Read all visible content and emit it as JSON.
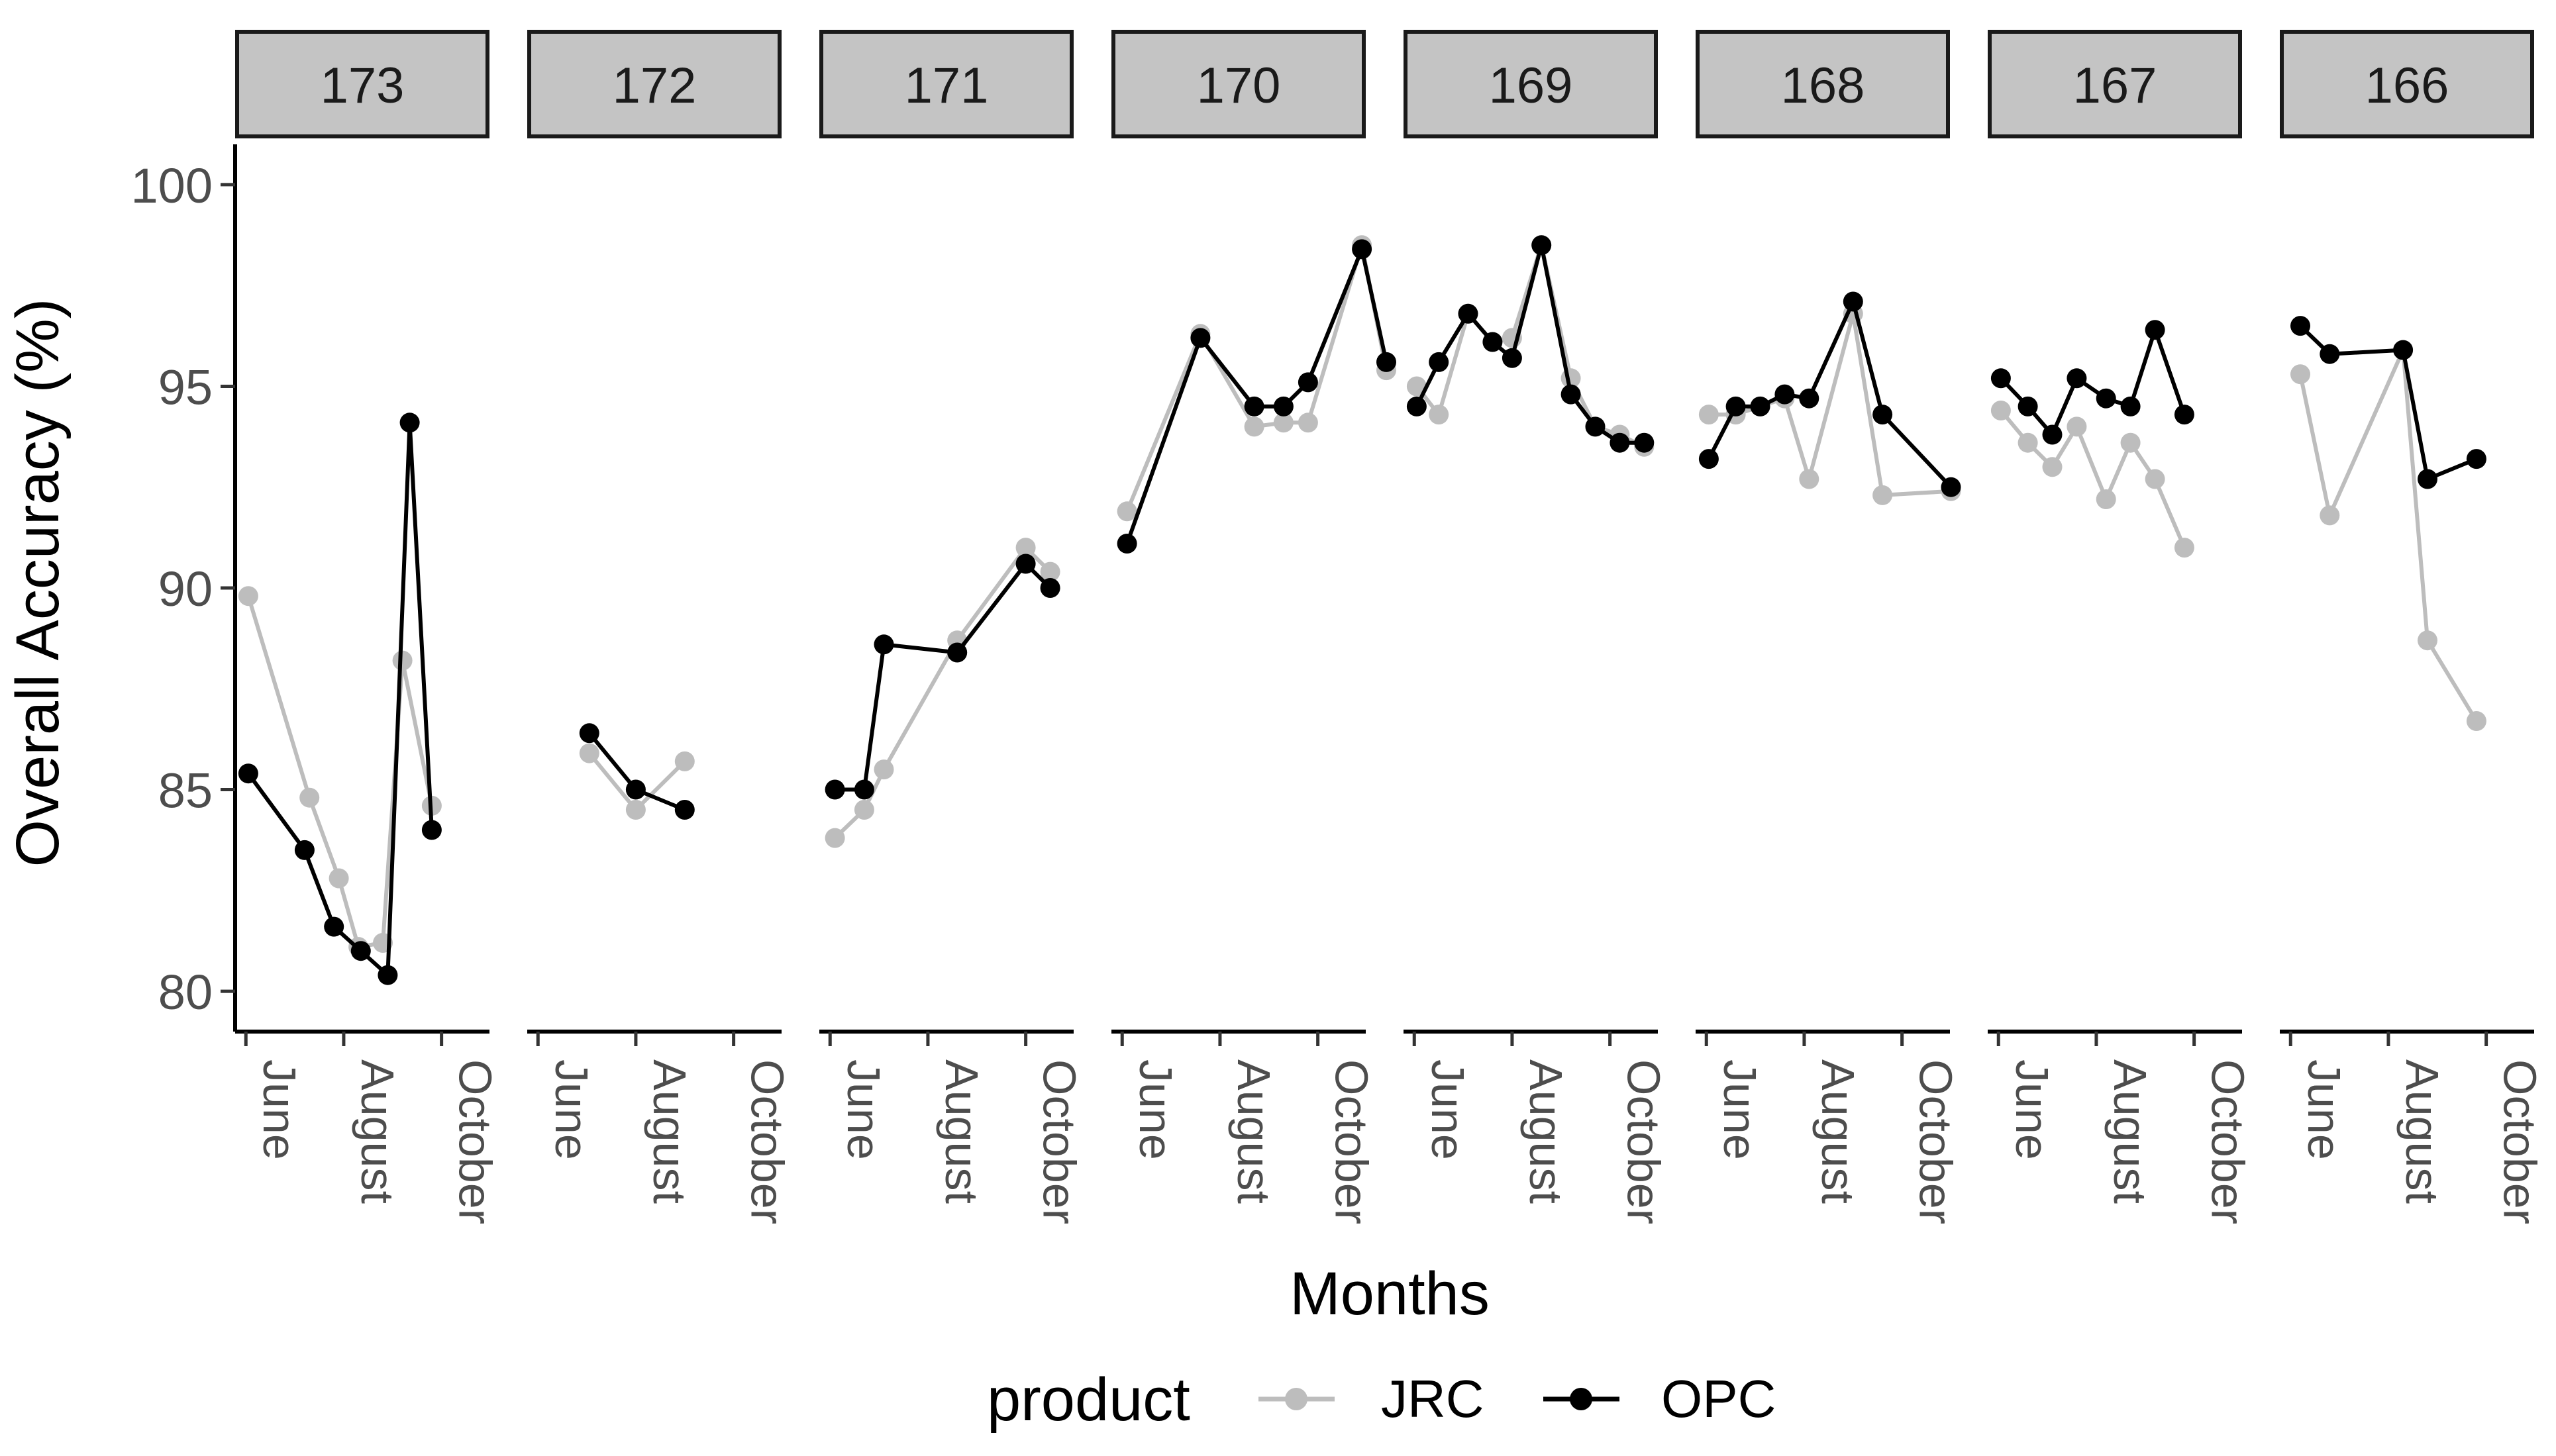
{
  "colors": {
    "JRC": "#bdbdbd",
    "OPC": "#000000",
    "strip_fill": "#c4c4c4",
    "tick_label": "#4d4d4d"
  },
  "chart_data": {
    "type": "line",
    "facet_by": "orbit",
    "xlabel": "Months",
    "ylabel": "Overall Accuracy (%)",
    "ylim": [
      79,
      101
    ],
    "yticks": [
      80,
      85,
      90,
      95,
      100
    ],
    "xlim_month": [
      5.78,
      10.98
    ],
    "xticks": [
      {
        "label": "June",
        "month": 6
      },
      {
        "label": "August",
        "month": 8
      },
      {
        "label": "October",
        "month": 10
      }
    ],
    "legend": {
      "title": "product",
      "position": "bottom"
    },
    "series_names": [
      "JRC",
      "OPC"
    ],
    "facets": [
      {
        "label": "173",
        "JRC": [
          [
            6.05,
            89.8
          ],
          [
            7.3,
            84.8
          ],
          [
            7.9,
            82.8
          ],
          [
            8.3,
            81.1
          ],
          [
            8.8,
            81.2
          ],
          [
            9.2,
            88.2
          ],
          [
            9.8,
            84.6
          ]
        ],
        "OPC": [
          [
            6.05,
            85.4
          ],
          [
            7.2,
            83.5
          ],
          [
            7.8,
            81.6
          ],
          [
            8.35,
            81.0
          ],
          [
            8.9,
            80.4
          ],
          [
            9.35,
            94.1
          ],
          [
            9.8,
            84.0
          ]
        ]
      },
      {
        "label": "172",
        "JRC": [
          [
            7.05,
            85.9
          ],
          [
            8.0,
            84.5
          ],
          [
            9.0,
            85.7
          ]
        ],
        "OPC": [
          [
            7.05,
            86.4
          ],
          [
            8.0,
            85.0
          ],
          [
            9.0,
            84.5
          ]
        ]
      },
      {
        "label": "171",
        "JRC": [
          [
            6.1,
            83.8
          ],
          [
            6.7,
            84.5
          ],
          [
            7.1,
            85.5
          ],
          [
            8.6,
            88.7
          ],
          [
            10.0,
            91.0
          ],
          [
            10.5,
            90.4
          ]
        ],
        "OPC": [
          [
            6.1,
            85.0
          ],
          [
            6.7,
            85.0
          ],
          [
            7.1,
            88.6
          ],
          [
            8.6,
            88.4
          ],
          [
            10.0,
            90.6
          ],
          [
            10.5,
            90.0
          ]
        ]
      },
      {
        "label": "170",
        "JRC": [
          [
            6.1,
            91.9
          ],
          [
            7.6,
            96.3
          ],
          [
            8.7,
            94.0
          ],
          [
            9.3,
            94.1
          ],
          [
            9.8,
            94.1
          ],
          [
            10.9,
            98.5
          ],
          [
            11.4,
            95.4
          ]
        ],
        "OPC": [
          [
            6.1,
            91.1
          ],
          [
            7.6,
            96.2
          ],
          [
            8.7,
            94.5
          ],
          [
            9.3,
            94.5
          ],
          [
            9.8,
            95.1
          ],
          [
            10.9,
            98.4
          ],
          [
            11.4,
            95.6
          ]
        ]
      },
      {
        "label": "169",
        "JRC": [
          [
            6.05,
            95.0
          ],
          [
            6.5,
            94.3
          ],
          [
            7.1,
            96.8
          ],
          [
            7.6,
            96.1
          ],
          [
            8.0,
            96.2
          ],
          [
            8.6,
            98.5
          ],
          [
            9.2,
            95.2
          ],
          [
            9.7,
            94.0
          ],
          [
            10.2,
            93.8
          ],
          [
            10.7,
            93.5
          ]
        ],
        "OPC": [
          [
            6.05,
            94.5
          ],
          [
            6.5,
            95.6
          ],
          [
            7.1,
            96.8
          ],
          [
            7.6,
            96.1
          ],
          [
            8.0,
            95.7
          ],
          [
            8.6,
            98.5
          ],
          [
            9.2,
            94.8
          ],
          [
            9.7,
            94.0
          ],
          [
            10.2,
            93.6
          ],
          [
            10.7,
            93.6
          ]
        ]
      },
      {
        "label": "168",
        "JRC": [
          [
            6.05,
            94.3
          ],
          [
            6.6,
            94.3
          ],
          [
            7.1,
            94.5
          ],
          [
            7.6,
            94.7
          ],
          [
            8.1,
            92.7
          ],
          [
            9.0,
            96.8
          ],
          [
            9.6,
            92.3
          ],
          [
            11.0,
            92.4
          ]
        ],
        "OPC": [
          [
            6.05,
            93.2
          ],
          [
            6.6,
            94.5
          ],
          [
            7.1,
            94.5
          ],
          [
            7.6,
            94.8
          ],
          [
            8.1,
            94.7
          ],
          [
            9.0,
            97.1
          ],
          [
            9.6,
            94.3
          ],
          [
            11.0,
            92.5
          ]
        ]
      },
      {
        "label": "167",
        "JRC": [
          [
            6.05,
            94.4
          ],
          [
            6.6,
            93.6
          ],
          [
            7.1,
            93.0
          ],
          [
            7.6,
            94.0
          ],
          [
            8.2,
            92.2
          ],
          [
            8.7,
            93.6
          ],
          [
            9.2,
            92.7
          ],
          [
            9.8,
            91.0
          ]
        ],
        "OPC": [
          [
            6.05,
            95.2
          ],
          [
            6.6,
            94.5
          ],
          [
            7.1,
            93.8
          ],
          [
            7.6,
            95.2
          ],
          [
            8.2,
            94.7
          ],
          [
            8.7,
            94.5
          ],
          [
            9.2,
            96.4
          ],
          [
            9.8,
            94.3
          ]
        ]
      },
      {
        "label": "166",
        "JRC": [
          [
            6.2,
            95.3
          ],
          [
            6.8,
            91.8
          ],
          [
            8.3,
            95.9
          ],
          [
            8.8,
            88.7
          ],
          [
            9.8,
            86.7
          ]
        ],
        "OPC": [
          [
            6.2,
            96.5
          ],
          [
            6.8,
            95.8
          ],
          [
            8.3,
            95.9
          ],
          [
            8.8,
            92.7
          ],
          [
            9.8,
            93.2
          ]
        ]
      }
    ]
  }
}
